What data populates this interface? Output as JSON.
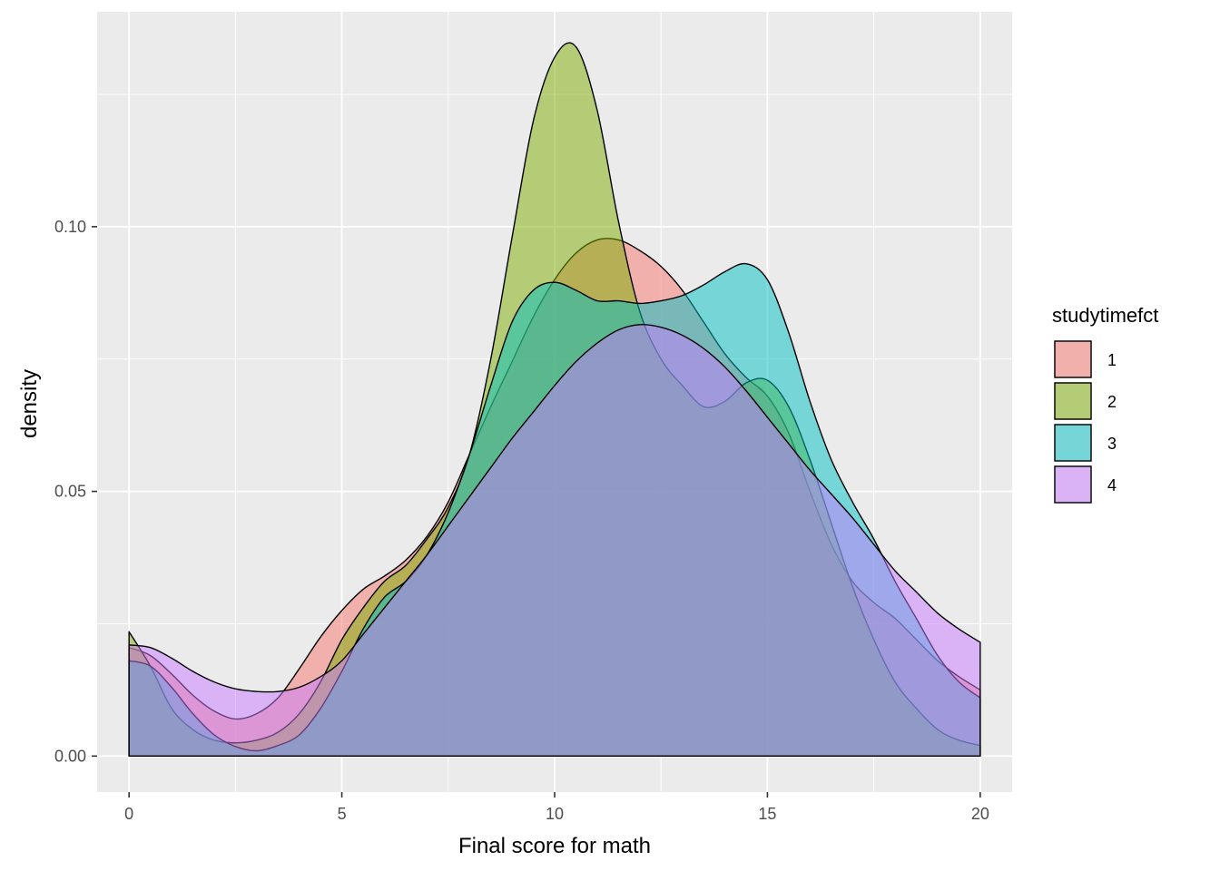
{
  "chart_data": {
    "type": "area",
    "subtype": "density",
    "xlabel": "Final score for math",
    "ylabel": "density",
    "xlim": [
      -0.75,
      20.75
    ],
    "ylim": [
      -0.0068,
      0.1406
    ],
    "x_ticks": [
      0,
      5,
      10,
      15,
      20
    ],
    "x_tick_labels": [
      "0",
      "5",
      "10",
      "15",
      "20"
    ],
    "y_ticks": [
      0.0,
      0.05,
      0.1
    ],
    "y_tick_labels": [
      "0.00",
      "0.05",
      "0.10"
    ],
    "grid": true,
    "panel_background": "#ebebeb",
    "legend": {
      "title": "studytimefct",
      "position": "right",
      "entries": [
        "1",
        "2",
        "3",
        "4"
      ]
    },
    "series": [
      {
        "name": "1",
        "color": "#F8766D",
        "fill_opacity": 0.5,
        "x": [
          0,
          0.5,
          1,
          1.5,
          2,
          2.5,
          3,
          3.5,
          4,
          4.5,
          5,
          5.5,
          6,
          6.5,
          7,
          7.5,
          8,
          8.5,
          9,
          9.5,
          10,
          10.5,
          11,
          11.5,
          12,
          12.5,
          13,
          13.5,
          14,
          14.5,
          15,
          15.5,
          16,
          16.5,
          17,
          17.5,
          18,
          18.5,
          19,
          19.5,
          20
        ],
        "values": [
          0.0205,
          0.019,
          0.0155,
          0.0115,
          0.0085,
          0.007,
          0.008,
          0.011,
          0.0165,
          0.0225,
          0.0275,
          0.0315,
          0.034,
          0.037,
          0.0415,
          0.048,
          0.057,
          0.066,
          0.0745,
          0.083,
          0.09,
          0.095,
          0.0975,
          0.0975,
          0.0955,
          0.0925,
          0.088,
          0.082,
          0.076,
          0.0715,
          0.068,
          0.061,
          0.05,
          0.04,
          0.033,
          0.029,
          0.026,
          0.022,
          0.018,
          0.015,
          0.0125
        ]
      },
      {
        "name": "2",
        "color": "#7CAE00",
        "fill_opacity": 0.5,
        "x": [
          0,
          0.5,
          1,
          1.5,
          2,
          2.5,
          3,
          3.5,
          4,
          4.5,
          5,
          5.5,
          6,
          6.5,
          7,
          7.5,
          8,
          8.5,
          9,
          9.5,
          10,
          10.5,
          11,
          11.5,
          12,
          12.5,
          13,
          13.5,
          14,
          14.5,
          15,
          15.5,
          16,
          16.5,
          17,
          17.5,
          18,
          18.5,
          19,
          19.5,
          20
        ],
        "values": [
          0.0235,
          0.017,
          0.009,
          0.005,
          0.003,
          0.0025,
          0.003,
          0.0045,
          0.008,
          0.014,
          0.022,
          0.028,
          0.033,
          0.036,
          0.041,
          0.047,
          0.057,
          0.075,
          0.098,
          0.12,
          0.132,
          0.134,
          0.122,
          0.101,
          0.084,
          0.075,
          0.07,
          0.066,
          0.067,
          0.0705,
          0.071,
          0.066,
          0.056,
          0.044,
          0.032,
          0.022,
          0.014,
          0.009,
          0.005,
          0.003,
          0.002
        ]
      },
      {
        "name": "3",
        "color": "#00BFC4",
        "fill_opacity": 0.5,
        "x": [
          0,
          0.5,
          1,
          1.5,
          2,
          2.5,
          3,
          3.5,
          4,
          4.5,
          5,
          5.5,
          6,
          6.5,
          7,
          7.5,
          8,
          8.5,
          9,
          9.5,
          10,
          10.5,
          11,
          11.5,
          12,
          12.5,
          13,
          13.5,
          14,
          14.5,
          15,
          15.5,
          16,
          16.5,
          17,
          17.5,
          18,
          18.5,
          19,
          19.5,
          20
        ],
        "values": [
          0.018,
          0.017,
          0.013,
          0.008,
          0.004,
          0.0018,
          0.001,
          0.002,
          0.004,
          0.009,
          0.016,
          0.024,
          0.03,
          0.033,
          0.038,
          0.046,
          0.057,
          0.07,
          0.082,
          0.088,
          0.0895,
          0.088,
          0.086,
          0.086,
          0.0855,
          0.086,
          0.087,
          0.089,
          0.0915,
          0.093,
          0.09,
          0.08,
          0.067,
          0.056,
          0.048,
          0.041,
          0.033,
          0.026,
          0.019,
          0.014,
          0.011
        ]
      },
      {
        "name": "4",
        "color": "#C77CFF",
        "fill_opacity": 0.5,
        "x": [
          0,
          0.5,
          1,
          1.5,
          2,
          2.5,
          3,
          3.5,
          4,
          4.5,
          5,
          5.5,
          6,
          6.5,
          7,
          7.5,
          8,
          8.5,
          9,
          9.5,
          10,
          10.5,
          11,
          11.5,
          12,
          12.5,
          13,
          13.5,
          14,
          14.5,
          15,
          15.5,
          16,
          16.5,
          17,
          17.5,
          18,
          18.5,
          19,
          19.5,
          20
        ],
        "values": [
          0.021,
          0.0205,
          0.0185,
          0.016,
          0.014,
          0.0127,
          0.0122,
          0.0122,
          0.013,
          0.015,
          0.018,
          0.023,
          0.028,
          0.033,
          0.038,
          0.0435,
          0.049,
          0.0545,
          0.06,
          0.065,
          0.07,
          0.0745,
          0.078,
          0.0805,
          0.0815,
          0.081,
          0.0795,
          0.077,
          0.0735,
          0.069,
          0.064,
          0.059,
          0.054,
          0.0495,
          0.045,
          0.04,
          0.035,
          0.031,
          0.027,
          0.024,
          0.0215
        ]
      }
    ]
  }
}
